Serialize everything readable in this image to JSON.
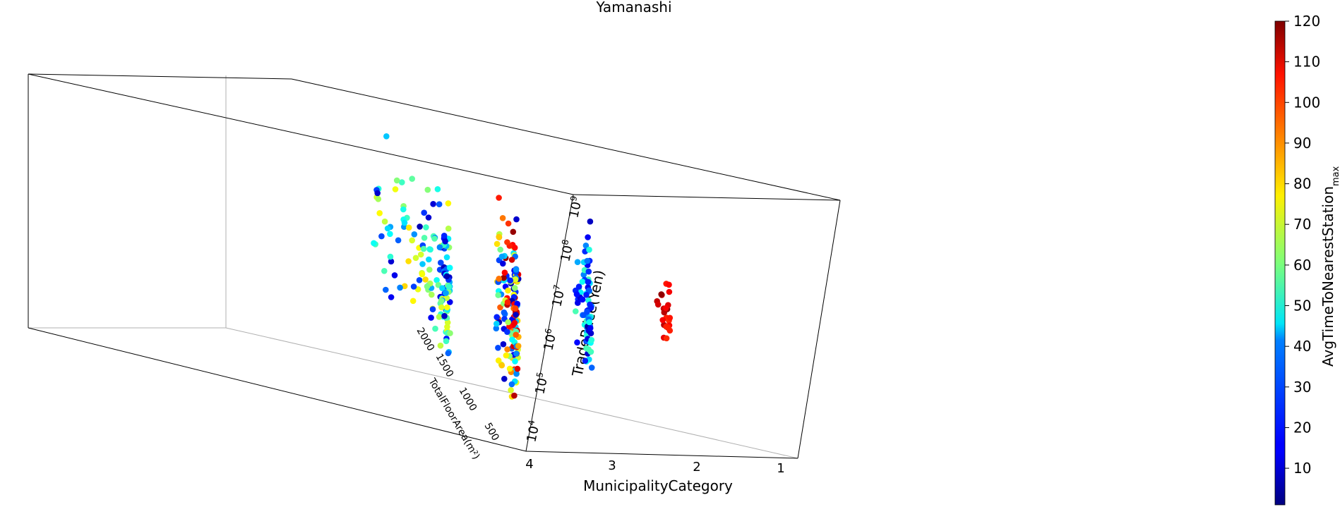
{
  "chart_data": {
    "type": "scatter",
    "projection": "3d",
    "title": "Yamanashi",
    "x": {
      "label": "MunicipalityCategory",
      "ticks": [
        "4",
        "3",
        "2",
        "1"
      ],
      "range": [
        1,
        4
      ]
    },
    "y": {
      "label": "TotalFloorArea(m²)",
      "ticks": [
        "500",
        "1000",
        "1500",
        "2000"
      ],
      "range": [
        0,
        2100
      ]
    },
    "z": {
      "label": "TradePrice(Yen)",
      "scale": "log",
      "ticks": [
        {
          "base": "10",
          "exp": "4"
        },
        {
          "base": "10",
          "exp": "5"
        },
        {
          "base": "10",
          "exp": "6"
        },
        {
          "base": "10",
          "exp": "7"
        },
        {
          "base": "10",
          "exp": "8"
        },
        {
          "base": "10",
          "exp": "9"
        }
      ],
      "range": [
        4,
        9.9
      ]
    },
    "colorbar": {
      "label": "AvgTimeToNearestStation",
      "label_sub": "max",
      "ticks": [
        "10",
        "20",
        "30",
        "40",
        "50",
        "60",
        "70",
        "80",
        "90",
        "100",
        "110",
        "120"
      ],
      "range": [
        1,
        120
      ],
      "colormap": "jet"
    },
    "grid": false,
    "clusters": [
      {
        "category": 4,
        "floor_area_range": [
          100,
          2000
        ],
        "log_price_range": [
          5.6,
          9.6
        ],
        "time_range": [
          5,
          80
        ],
        "count": 150
      },
      {
        "category": 3,
        "floor_area_range": [
          100,
          600
        ],
        "log_price_range": [
          4.7,
          9.4
        ],
        "time_range": [
          5,
          118
        ],
        "count": 160
      },
      {
        "category": 2,
        "floor_area_range": [
          100,
          500
        ],
        "log_price_range": [
          5.3,
          9.1
        ],
        "time_range": [
          5,
          55
        ],
        "count": 80
      },
      {
        "category": 1,
        "floor_area_range": [
          100,
          400
        ],
        "log_price_range": [
          6.0,
          8.1
        ],
        "time_range": [
          100,
          120
        ],
        "count": 25
      }
    ]
  }
}
